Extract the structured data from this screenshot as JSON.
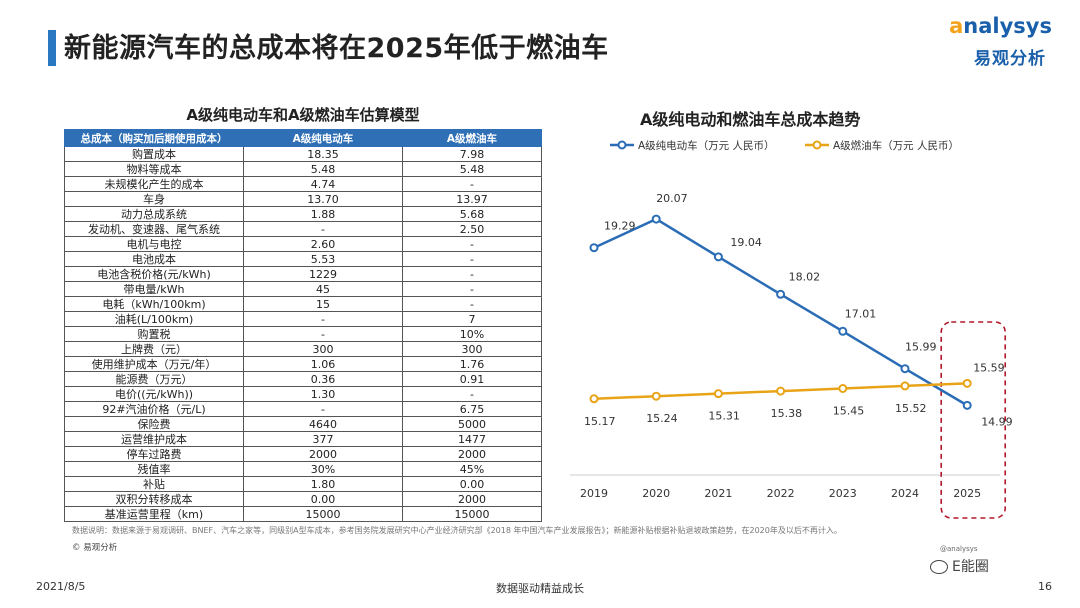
{
  "page": {
    "title": "新能源汽车的总成本将在2025年低于燃油车",
    "logo_text": "nalysys",
    "logo_cn": "易观分析",
    "table_title": "A级纯电动车和A级燃油车估算模型",
    "chart_title": "A级纯电动和燃油车总成本趋势",
    "source": "数据说明：数据来源于易观调研、BNEF、汽车之家等，同级别A型车成本，参考国务院发展研究中心产业经济研究部《2018 年中国汽车产业发展报告》；新能源补贴根据补贴退坡政策趋势，在2020年及以后不再计入。",
    "copyright": "© 易观分析",
    "footer_date": "2021/8/5",
    "footer_center": "数据驱动精益成长",
    "footer_page": "16",
    "wechat_name": "E能圈",
    "wechat_small": "@analysys"
  },
  "table": {
    "headers": [
      "总成本（购买加后期使用成本）",
      "A级纯电动车",
      "A级燃油车"
    ],
    "rows": [
      [
        "购置成本",
        "18.35",
        "7.98"
      ],
      [
        "物料等成本",
        "5.48",
        "5.48"
      ],
      [
        "未规模化产生的成本",
        "4.74",
        "-"
      ],
      [
        "车身",
        "13.70",
        "13.97"
      ],
      [
        "动力总成系统",
        "1.88",
        "5.68"
      ],
      [
        "发动机、变速器、尾气系统",
        "-",
        "2.50"
      ],
      [
        "电机与电控",
        "2.60",
        "-"
      ],
      [
        "电池成本",
        "5.53",
        "-"
      ],
      [
        "电池含税价格(元/kWh)",
        "1229",
        "-"
      ],
      [
        "带电量/kWh",
        "45",
        "-"
      ],
      [
        "电耗（kWh/100km)",
        "15",
        "-"
      ],
      [
        "油耗(L/100km)",
        "-",
        "7"
      ],
      [
        "购置税",
        "-",
        "10%"
      ],
      [
        "上牌费（元）",
        "300",
        "300"
      ],
      [
        "使用维护成本（万元/年）",
        "1.06",
        "1.76"
      ],
      [
        "能源费（万元）",
        "0.36",
        "0.91"
      ],
      [
        "电价((元/kWh))",
        "1.30",
        "-"
      ],
      [
        "92#汽油价格（元/L)",
        "-",
        "6.75"
      ],
      [
        "保险费",
        "4640",
        "5000"
      ],
      [
        "运营维护成本",
        "377",
        "1477"
      ],
      [
        "停车过路费",
        "2000",
        "2000"
      ],
      [
        "残值率",
        "30%",
        "45%"
      ],
      [
        "补贴",
        "1.80",
        "0.00"
      ],
      [
        "双积分转移成本",
        "0.00",
        "2000"
      ],
      [
        "基准运营里程（km)",
        "15000",
        "15000"
      ]
    ]
  },
  "chart_data": {
    "type": "line",
    "title": "A级纯电动和燃油车总成本趋势",
    "x": [
      "2019",
      "2020",
      "2021",
      "2022",
      "2023",
      "2024",
      "2025"
    ],
    "series": [
      {
        "name": "A级纯电动车（万元 人民币）",
        "color": "#2a6cb5",
        "values": [
          19.29,
          20.07,
          19.04,
          18.02,
          17.01,
          15.99,
          14.99
        ]
      },
      {
        "name": "A级燃油车（万元 人民币）",
        "color": "#e8a317",
        "values": [
          15.17,
          15.24,
          15.31,
          15.38,
          15.45,
          15.52,
          15.59
        ]
      }
    ],
    "legend": "top",
    "highlight": "2025",
    "grid": false
  }
}
